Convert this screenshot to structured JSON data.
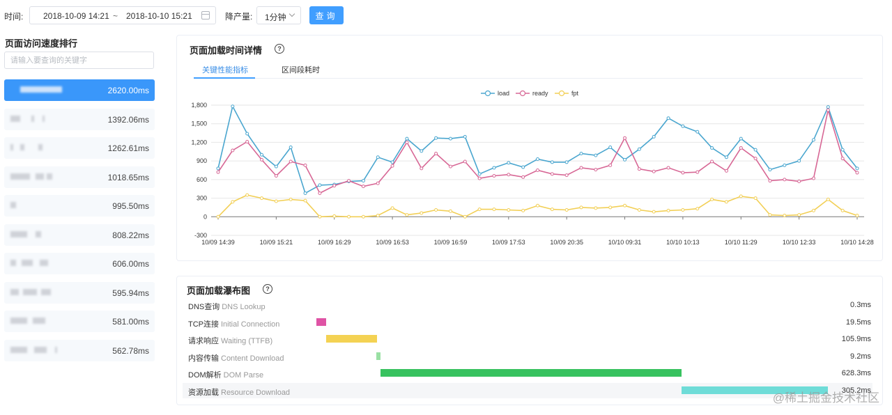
{
  "toolbar": {
    "time_label": "时间:",
    "start": "2018-10-09 14:21",
    "sep": "~",
    "end": "2018-10-10 15:21",
    "granularity_label": "降产量:",
    "granularity_value": "1分钟",
    "query_label": "查询"
  },
  "left": {
    "title": "页面访问速度排行",
    "search_placeholder": "请输入要查询的关键字",
    "items": [
      {
        "value": "2620.00ms",
        "active": true
      },
      {
        "value": "1392.06ms"
      },
      {
        "value": "1262.61ms"
      },
      {
        "value": "1018.65ms"
      },
      {
        "value": "995.50ms"
      },
      {
        "value": "808.22ms"
      },
      {
        "value": "606.00ms"
      },
      {
        "value": "595.94ms"
      },
      {
        "value": "581.00ms"
      },
      {
        "value": "562.78ms"
      }
    ]
  },
  "detail": {
    "title": "页面加载时间详情",
    "help": "?",
    "tabs": [
      "关键性能指标",
      "区间段耗时"
    ]
  },
  "chart_data": {
    "type": "line",
    "ylim": [
      -300,
      1800
    ],
    "yticks": [
      "1,800",
      "1,500",
      "1,200",
      "900",
      "600",
      "300",
      "0",
      "-300"
    ],
    "ytick_values": [
      1800,
      1500,
      1200,
      900,
      600,
      300,
      0,
      -300
    ],
    "xtick_labels": [
      "10/09 14:39",
      "10/09 15:21",
      "10/09 16:29",
      "10/09 16:53",
      "10/09 16:59",
      "10/09 17:53",
      "10/09 20:35",
      "10/10 09:31",
      "10/10 10:13",
      "10/10 11:29",
      "10/10 12:33",
      "10/10 14:28"
    ],
    "legend_position": "top-center",
    "grid": true,
    "series": [
      {
        "name": "load",
        "color": "#4aa6cf",
        "values": [
          780,
          1780,
          1340,
          1000,
          810,
          1120,
          380,
          510,
          520,
          570,
          580,
          960,
          880,
          1260,
          1060,
          1270,
          1260,
          1290,
          690,
          790,
          870,
          800,
          930,
          880,
          880,
          1020,
          990,
          1120,
          920,
          1090,
          1290,
          1590,
          1460,
          1370,
          1110,
          960,
          1260,
          1080,
          760,
          830,
          900,
          1240,
          1770,
          1080,
          780
        ]
      },
      {
        "name": "ready",
        "color": "#d76795",
        "values": [
          720,
          1070,
          1210,
          920,
          660,
          890,
          830,
          380,
          500,
          580,
          490,
          540,
          820,
          1200,
          780,
          1020,
          810,
          890,
          620,
          660,
          680,
          640,
          750,
          690,
          670,
          790,
          760,
          830,
          1270,
          770,
          730,
          790,
          710,
          720,
          890,
          740,
          1110,
          940,
          580,
          600,
          570,
          620,
          1720,
          940,
          710
        ]
      },
      {
        "name": "fpt",
        "color": "#f2cf55",
        "values": [
          0,
          240,
          350,
          300,
          250,
          280,
          260,
          0,
          10,
          0,
          0,
          20,
          140,
          30,
          60,
          110,
          90,
          0,
          120,
          120,
          110,
          100,
          180,
          120,
          110,
          150,
          140,
          150,
          180,
          110,
          80,
          100,
          110,
          130,
          280,
          240,
          330,
          300,
          30,
          20,
          30,
          100,
          280,
          100,
          20
        ]
      }
    ]
  },
  "waterfall": {
    "title": "页面加载瀑布图",
    "help": "?",
    "rows": [
      {
        "zh": "DNS查询",
        "en": "DNS Lookup",
        "value": "0.3ms",
        "ms": 0.3,
        "color": "#e256a3"
      },
      {
        "zh": "TCP连接",
        "en": "Initial Connection",
        "value": "19.5ms",
        "ms": 19.5,
        "color": "#df53a5"
      },
      {
        "zh": "请求响应",
        "en": "Waiting (TTFB)",
        "value": "105.9ms",
        "ms": 105.9,
        "color": "#f4d253"
      },
      {
        "zh": "内容传输",
        "en": "Content Download",
        "value": "9.2ms",
        "ms": 9.2,
        "color": "#9ae0a4"
      },
      {
        "zh": "DOM解析",
        "en": "DOM Parse",
        "value": "628.3ms",
        "ms": 628.3,
        "color": "#38c25f"
      },
      {
        "zh": "资源加载",
        "en": "Resource Download",
        "value": "305.2ms",
        "ms": 305.2,
        "color": "#6fdcd8"
      }
    ]
  },
  "watermark": "@稀土掘金技术社区"
}
